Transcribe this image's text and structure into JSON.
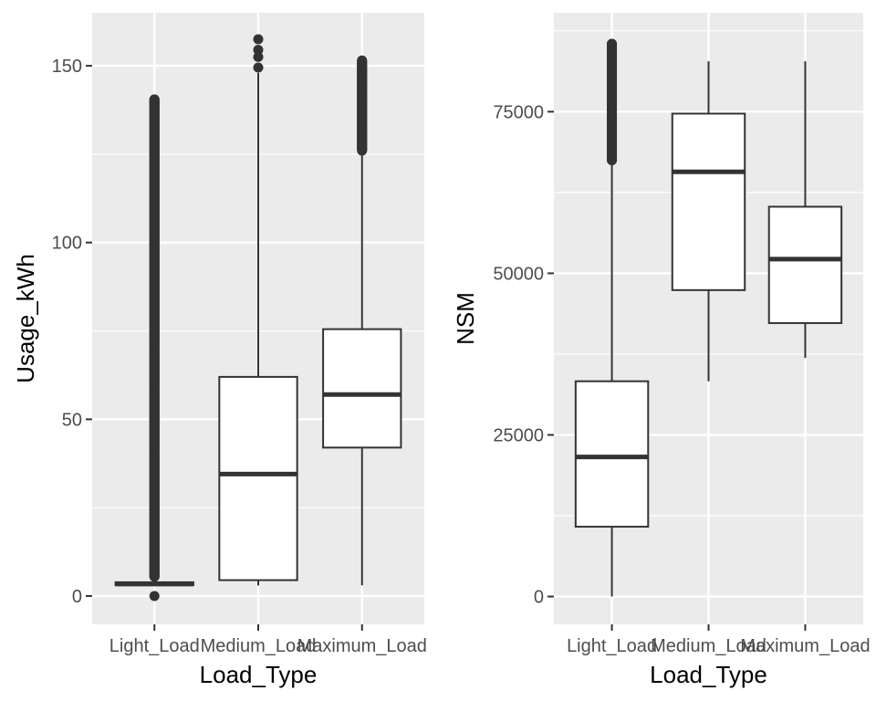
{
  "chart_data": [
    {
      "type": "box",
      "title": "",
      "xlabel": "Load_Type",
      "ylabel": "Usage_kWh",
      "categories": [
        "Light_Load",
        "Medium_Load",
        "Maximum_Load"
      ],
      "ylim": [
        -8,
        165
      ],
      "yticks": [
        0,
        50,
        100,
        150
      ],
      "grid": true,
      "boxes": [
        {
          "category": "Light_Load",
          "whisker_low": 3.0,
          "q1": 3.1,
          "median": 3.4,
          "q3": 3.9,
          "whisker_high": 5.0,
          "outliers_range": [
            5.5,
            140.5
          ],
          "outliers": [
            0.0,
            140.5,
            139.5,
            137.0,
            134.0,
            130.0,
            126.0,
            121.0,
            116.0,
            111.0,
            105.0,
            98.0,
            92.0,
            86.0,
            80.0,
            74.0,
            68.0,
            62.0,
            56.0,
            50.0,
            44.0,
            38.0,
            32.0,
            26.0,
            20.0,
            14.0,
            10.0,
            7.0,
            5.5
          ]
        },
        {
          "category": "Medium_Load",
          "whisker_low": 3.0,
          "q1": 4.5,
          "median": 34.5,
          "q3": 62.0,
          "whisker_high": 148.0,
          "outliers": [
            149.5,
            152.5,
            154.5,
            157.5
          ]
        },
        {
          "category": "Maximum_Load",
          "whisker_low": 3.0,
          "q1": 42.0,
          "median": 57.0,
          "q3": 75.5,
          "whisker_high": 125.5,
          "outliers_range": [
            126.0,
            151.5
          ],
          "outliers": [
            126.5,
            128.0,
            130.0,
            132.0,
            134.0,
            136.0,
            138.0,
            140.0,
            142.0,
            144.0,
            146.0,
            148.0,
            149.5,
            151.5
          ]
        }
      ]
    },
    {
      "type": "box",
      "title": "",
      "xlabel": "Load_Type",
      "ylabel": "NSM",
      "categories": [
        "Light_Load",
        "Medium_Load",
        "Maximum_Load"
      ],
      "ylim": [
        -4300,
        90300
      ],
      "yticks": [
        0,
        25000,
        50000,
        75000
      ],
      "grid": true,
      "boxes": [
        {
          "category": "Light_Load",
          "whisker_low": 0,
          "q1": 10800,
          "median": 21600,
          "q3": 33300,
          "whisker_high": 67500,
          "outliers_range": [
            67500,
            85500
          ],
          "outliers": [
            67500,
            69000,
            70500,
            72000,
            73500,
            75000,
            76500,
            78000,
            79500,
            81000,
            82500,
            84000,
            85500
          ]
        },
        {
          "category": "Medium_Load",
          "whisker_low": 33300,
          "q1": 47400,
          "median": 65700,
          "q3": 74700,
          "whisker_high": 82800,
          "outliers": []
        },
        {
          "category": "Maximum_Load",
          "whisker_low": 36900,
          "q1": 42300,
          "median": 52200,
          "q3": 60300,
          "whisker_high": 82800,
          "outliers": []
        }
      ]
    }
  ]
}
